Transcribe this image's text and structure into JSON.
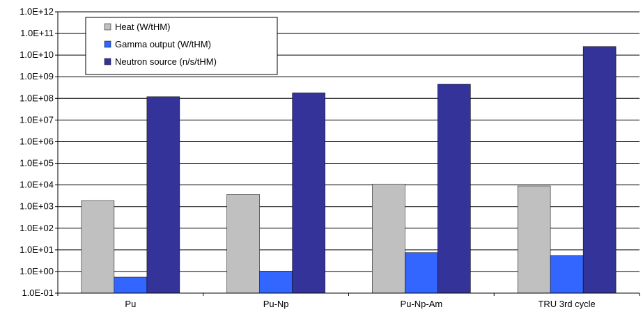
{
  "chart_data": {
    "type": "bar",
    "scale": "log",
    "ylim": [
      0.1,
      1000000000000.0
    ],
    "ytick_labels": [
      "1.0E-01",
      "1.0E+00",
      "1.0E+01",
      "1.0E+02",
      "1.0E+03",
      "1.0E+04",
      "1.0E+05",
      "1.0E+06",
      "1.0E+07",
      "1.0E+08",
      "1.0E+09",
      "1.0E+10",
      "1.0E+11",
      "1.0E+12"
    ],
    "categories": [
      "Pu",
      "Pu-Np",
      "Pu-Np-Am",
      "TRU 3rd cycle"
    ],
    "series": [
      {
        "name": "Heat (W/tHM)",
        "color": "#c0c0c0",
        "values": [
          1900,
          3600,
          11000,
          9000
        ]
      },
      {
        "name": "Gamma output (W/tHM)",
        "color": "#3366ff",
        "values": [
          0.55,
          1.05,
          7.5,
          5.5
        ]
      },
      {
        "name": "Neutron source (n/s/tHM)",
        "color": "#333399",
        "values": [
          120000000,
          180000000,
          450000000,
          25000000000
        ]
      }
    ],
    "grid": true,
    "legend_position": "top-left"
  }
}
